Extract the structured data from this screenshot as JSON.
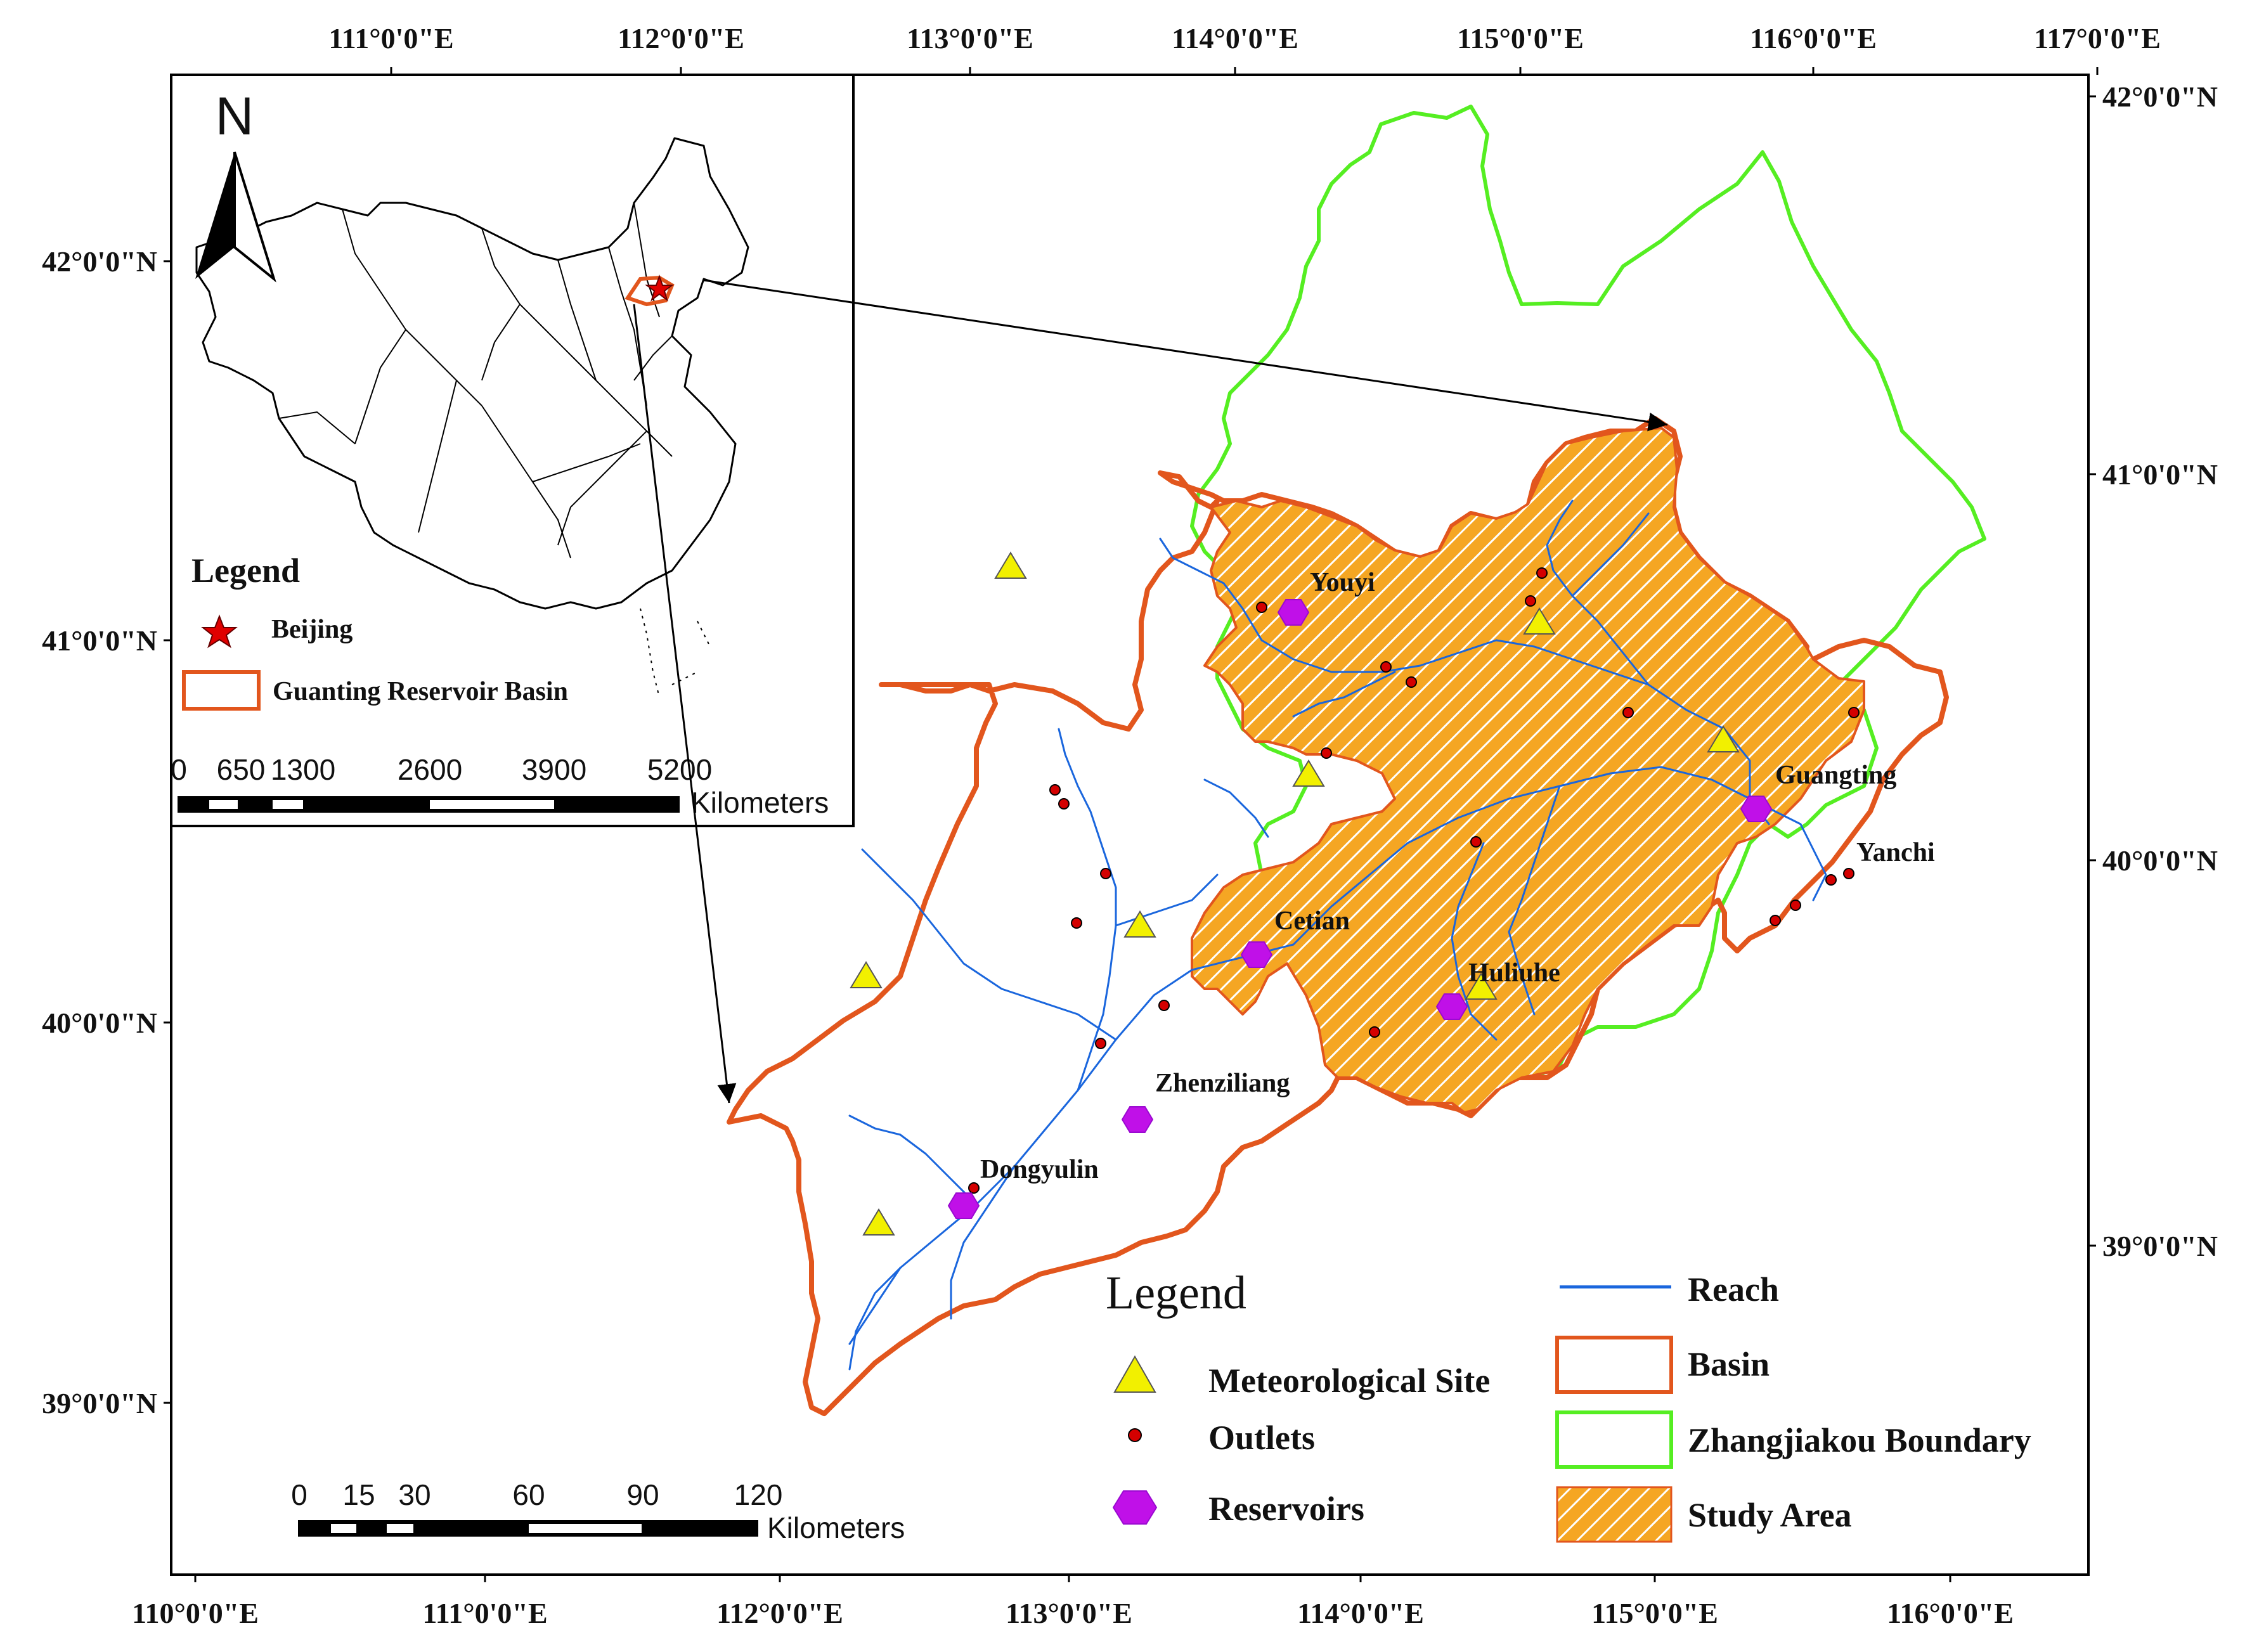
{
  "colors": {
    "basin": "#e2561d",
    "study_area_fill": "#f5a623",
    "study_area_hatch": "#ffffff",
    "zhangjiakou": "#55ee22",
    "reach": "#1a66dd",
    "outlet": "#d40000",
    "reservoir": "#c010e8",
    "met_site": "#f2f000",
    "inset_star": "#e00000"
  },
  "top_axis": [
    "111°0'0\"E",
    "112°0'0\"E",
    "113°0'0\"E",
    "114°0'0\"E",
    "115°0'0\"E",
    "116°0'0\"E",
    "117°0'0\"E"
  ],
  "bottom_axis": [
    "110°0'0\"E",
    "111°0'0\"E",
    "112°0'0\"E",
    "113°0'0\"E",
    "114°0'0\"E",
    "115°0'0\"E",
    "116°0'0\"E"
  ],
  "left_axis": [
    "42°0'0\"N",
    "41°0'0\"N",
    "40°0'0\"N",
    "39°0'0\"N"
  ],
  "right_axis": [
    "42°0'0\"N",
    "41°0'0\"N",
    "40°0'0\"N",
    "39°0'0\"N"
  ],
  "reservoir_labels": [
    "Youyi",
    "Guangting",
    "Yanchi",
    "Cetian",
    "Huliuhe",
    "Zhenziliang",
    "Dongyulin"
  ],
  "inset": {
    "north_label": "N",
    "legend_title": "Legend",
    "legend_items": [
      "Beijing",
      "Guanting Reservoir Basin"
    ],
    "scale_ticks": [
      "0",
      "650",
      "1300",
      "2600",
      "3900",
      "5200"
    ],
    "scale_unit": "Kilometers"
  },
  "main_scale": {
    "ticks": [
      "0",
      "15",
      "30",
      "60",
      "90",
      "120"
    ],
    "unit": "Kilometers"
  },
  "legend": {
    "title": "Legend",
    "items": [
      "Meteorological Site",
      "Outlets",
      "Reservoirs",
      "Reach",
      "Basin",
      "Zhangjiakou Boundary",
      "Study Area"
    ]
  }
}
